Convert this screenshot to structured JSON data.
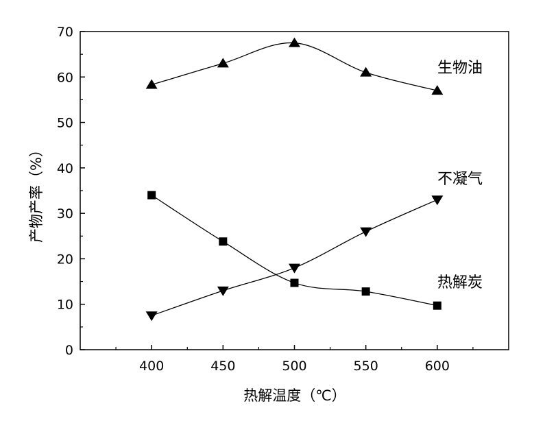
{
  "chart_data": {
    "type": "line",
    "xlabel": "热解温度（℃）",
    "ylabel": "产物产率（%）",
    "xlim": [
      350,
      650
    ],
    "ylim": [
      0,
      70
    ],
    "x_ticks": [
      400,
      450,
      500,
      550,
      600
    ],
    "y_ticks": [
      0,
      10,
      20,
      30,
      40,
      50,
      60,
      70
    ],
    "x": [
      400,
      450,
      500,
      550,
      600
    ],
    "grid": false,
    "legend": "none",
    "series": [
      {
        "name": "生物油",
        "marker": "triangle-up",
        "values": [
          58.3,
          63.0,
          67.5,
          61.0,
          57.0
        ]
      },
      {
        "name": "不凝气",
        "marker": "triangle-down",
        "values": [
          7.5,
          13.0,
          18.0,
          26.0,
          33.0
        ]
      },
      {
        "name": "热解炭",
        "marker": "square",
        "values": [
          34.0,
          23.8,
          14.7,
          12.8,
          9.7
        ]
      }
    ]
  }
}
